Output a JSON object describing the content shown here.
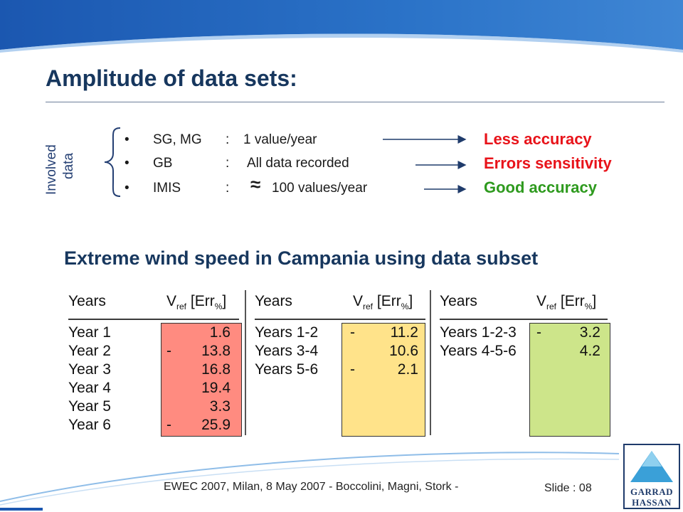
{
  "slide": {
    "title": "Amplitude of data sets:",
    "involved_label_1": "Involved",
    "involved_label_2": "data",
    "bullets": [
      {
        "dot": "•",
        "name": "SG, MG",
        "colon": ":",
        "value": "1 value/year"
      },
      {
        "dot": "•",
        "name": "GB",
        "colon": ":",
        "value": "All data recorded"
      },
      {
        "dot": "•",
        "name": "IMIS",
        "colon": ":",
        "approx": "≈",
        "value": "100 values/year"
      }
    ],
    "accuracy": [
      {
        "label": "Less accuracy",
        "color": "#e8131a"
      },
      {
        "label": "Errors sensitivity",
        "color": "#e8131a"
      },
      {
        "label": "Good accuracy",
        "color": "#2e9a1e"
      }
    ],
    "subtitle": "Extreme wind speed in Campania using data subset",
    "tables": [
      {
        "col1_header": "Years",
        "col2_header_v": "V",
        "col2_header_sub": "ref",
        "col2_header_err": "[Err",
        "col2_header_pct": "%",
        "col2_header_close": "]",
        "box_color": "#ff8b80",
        "rows": [
          {
            "label": "Year 1",
            "sign": "",
            "value": "1.6"
          },
          {
            "label": "Year 2",
            "sign": "-",
            "value": "13.8"
          },
          {
            "label": "Year 3",
            "sign": "",
            "value": "16.8"
          },
          {
            "label": "Year 4",
            "sign": "",
            "value": "19.4"
          },
          {
            "label": "Year 5",
            "sign": "",
            "value": "3.3"
          },
          {
            "label": "Year 6",
            "sign": "-",
            "value": "25.9"
          }
        ]
      },
      {
        "col1_header": "Years",
        "col2_header_v": "V",
        "col2_header_sub": "ref",
        "col2_header_err": "[Err",
        "col2_header_pct": "%",
        "col2_header_close": "]",
        "box_color": "#ffe38a",
        "rows": [
          {
            "label": "Years 1-2",
            "sign": "-",
            "value": "11.2"
          },
          {
            "label": "Years 3-4",
            "sign": "",
            "value": "10.6"
          },
          {
            "label": "Years 5-6",
            "sign": "-",
            "value": "2.1"
          }
        ]
      },
      {
        "col1_header": "Years",
        "col2_header_v": "V",
        "col2_header_sub": "ref",
        "col2_header_err": "[Err",
        "col2_header_pct": "%",
        "col2_header_close": "]",
        "box_color": "#cde58a",
        "rows": [
          {
            "label": "Years 1-2-3",
            "sign": "-",
            "value": "3.2"
          },
          {
            "label": "Years 4-5-6",
            "sign": "",
            "value": "4.2"
          }
        ]
      }
    ],
    "footer": "EWEC 2007, Milan, 8 May 2007 - Boccolini, Magni, Stork -",
    "slide_number": "Slide : 08",
    "logo_line1": "GARRAD",
    "logo_line2": "HASSAN",
    "colors": {
      "title": "#17375e",
      "band": "#1f5fb4",
      "logo_triangle": "#3aa0d8"
    }
  }
}
